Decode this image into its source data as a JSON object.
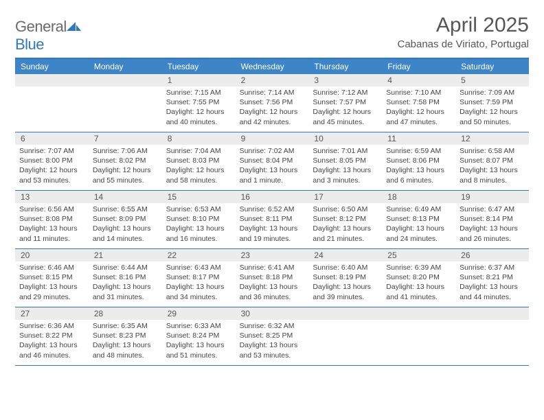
{
  "brand": {
    "part1": "General",
    "part2": "Blue"
  },
  "title": "April 2025",
  "location": "Cabanas de Viriato, Portugal",
  "colors": {
    "accent": "#3d85c6",
    "rule": "#2f7abf",
    "daybg": "#ececec",
    "text": "#444444",
    "title": "#565656"
  },
  "dow": [
    "Sunday",
    "Monday",
    "Tuesday",
    "Wednesday",
    "Thursday",
    "Friday",
    "Saturday"
  ],
  "weeks": [
    [
      {
        "n": "",
        "sr": "",
        "ss": "",
        "dl": ""
      },
      {
        "n": "",
        "sr": "",
        "ss": "",
        "dl": ""
      },
      {
        "n": "1",
        "sr": "Sunrise: 7:15 AM",
        "ss": "Sunset: 7:55 PM",
        "dl": "Daylight: 12 hours and 40 minutes."
      },
      {
        "n": "2",
        "sr": "Sunrise: 7:14 AM",
        "ss": "Sunset: 7:56 PM",
        "dl": "Daylight: 12 hours and 42 minutes."
      },
      {
        "n": "3",
        "sr": "Sunrise: 7:12 AM",
        "ss": "Sunset: 7:57 PM",
        "dl": "Daylight: 12 hours and 45 minutes."
      },
      {
        "n": "4",
        "sr": "Sunrise: 7:10 AM",
        "ss": "Sunset: 7:58 PM",
        "dl": "Daylight: 12 hours and 47 minutes."
      },
      {
        "n": "5",
        "sr": "Sunrise: 7:09 AM",
        "ss": "Sunset: 7:59 PM",
        "dl": "Daylight: 12 hours and 50 minutes."
      }
    ],
    [
      {
        "n": "6",
        "sr": "Sunrise: 7:07 AM",
        "ss": "Sunset: 8:00 PM",
        "dl": "Daylight: 12 hours and 53 minutes."
      },
      {
        "n": "7",
        "sr": "Sunrise: 7:06 AM",
        "ss": "Sunset: 8:02 PM",
        "dl": "Daylight: 12 hours and 55 minutes."
      },
      {
        "n": "8",
        "sr": "Sunrise: 7:04 AM",
        "ss": "Sunset: 8:03 PM",
        "dl": "Daylight: 12 hours and 58 minutes."
      },
      {
        "n": "9",
        "sr": "Sunrise: 7:02 AM",
        "ss": "Sunset: 8:04 PM",
        "dl": "Daylight: 13 hours and 1 minute."
      },
      {
        "n": "10",
        "sr": "Sunrise: 7:01 AM",
        "ss": "Sunset: 8:05 PM",
        "dl": "Daylight: 13 hours and 3 minutes."
      },
      {
        "n": "11",
        "sr": "Sunrise: 6:59 AM",
        "ss": "Sunset: 8:06 PM",
        "dl": "Daylight: 13 hours and 6 minutes."
      },
      {
        "n": "12",
        "sr": "Sunrise: 6:58 AM",
        "ss": "Sunset: 8:07 PM",
        "dl": "Daylight: 13 hours and 8 minutes."
      }
    ],
    [
      {
        "n": "13",
        "sr": "Sunrise: 6:56 AM",
        "ss": "Sunset: 8:08 PM",
        "dl": "Daylight: 13 hours and 11 minutes."
      },
      {
        "n": "14",
        "sr": "Sunrise: 6:55 AM",
        "ss": "Sunset: 8:09 PM",
        "dl": "Daylight: 13 hours and 14 minutes."
      },
      {
        "n": "15",
        "sr": "Sunrise: 6:53 AM",
        "ss": "Sunset: 8:10 PM",
        "dl": "Daylight: 13 hours and 16 minutes."
      },
      {
        "n": "16",
        "sr": "Sunrise: 6:52 AM",
        "ss": "Sunset: 8:11 PM",
        "dl": "Daylight: 13 hours and 19 minutes."
      },
      {
        "n": "17",
        "sr": "Sunrise: 6:50 AM",
        "ss": "Sunset: 8:12 PM",
        "dl": "Daylight: 13 hours and 21 minutes."
      },
      {
        "n": "18",
        "sr": "Sunrise: 6:49 AM",
        "ss": "Sunset: 8:13 PM",
        "dl": "Daylight: 13 hours and 24 minutes."
      },
      {
        "n": "19",
        "sr": "Sunrise: 6:47 AM",
        "ss": "Sunset: 8:14 PM",
        "dl": "Daylight: 13 hours and 26 minutes."
      }
    ],
    [
      {
        "n": "20",
        "sr": "Sunrise: 6:46 AM",
        "ss": "Sunset: 8:15 PM",
        "dl": "Daylight: 13 hours and 29 minutes."
      },
      {
        "n": "21",
        "sr": "Sunrise: 6:44 AM",
        "ss": "Sunset: 8:16 PM",
        "dl": "Daylight: 13 hours and 31 minutes."
      },
      {
        "n": "22",
        "sr": "Sunrise: 6:43 AM",
        "ss": "Sunset: 8:17 PM",
        "dl": "Daylight: 13 hours and 34 minutes."
      },
      {
        "n": "23",
        "sr": "Sunrise: 6:41 AM",
        "ss": "Sunset: 8:18 PM",
        "dl": "Daylight: 13 hours and 36 minutes."
      },
      {
        "n": "24",
        "sr": "Sunrise: 6:40 AM",
        "ss": "Sunset: 8:19 PM",
        "dl": "Daylight: 13 hours and 39 minutes."
      },
      {
        "n": "25",
        "sr": "Sunrise: 6:39 AM",
        "ss": "Sunset: 8:20 PM",
        "dl": "Daylight: 13 hours and 41 minutes."
      },
      {
        "n": "26",
        "sr": "Sunrise: 6:37 AM",
        "ss": "Sunset: 8:21 PM",
        "dl": "Daylight: 13 hours and 44 minutes."
      }
    ],
    [
      {
        "n": "27",
        "sr": "Sunrise: 6:36 AM",
        "ss": "Sunset: 8:22 PM",
        "dl": "Daylight: 13 hours and 46 minutes."
      },
      {
        "n": "28",
        "sr": "Sunrise: 6:35 AM",
        "ss": "Sunset: 8:23 PM",
        "dl": "Daylight: 13 hours and 48 minutes."
      },
      {
        "n": "29",
        "sr": "Sunrise: 6:33 AM",
        "ss": "Sunset: 8:24 PM",
        "dl": "Daylight: 13 hours and 51 minutes."
      },
      {
        "n": "30",
        "sr": "Sunrise: 6:32 AM",
        "ss": "Sunset: 8:25 PM",
        "dl": "Daylight: 13 hours and 53 minutes."
      },
      {
        "n": "",
        "sr": "",
        "ss": "",
        "dl": ""
      },
      {
        "n": "",
        "sr": "",
        "ss": "",
        "dl": ""
      },
      {
        "n": "",
        "sr": "",
        "ss": "",
        "dl": ""
      }
    ]
  ]
}
